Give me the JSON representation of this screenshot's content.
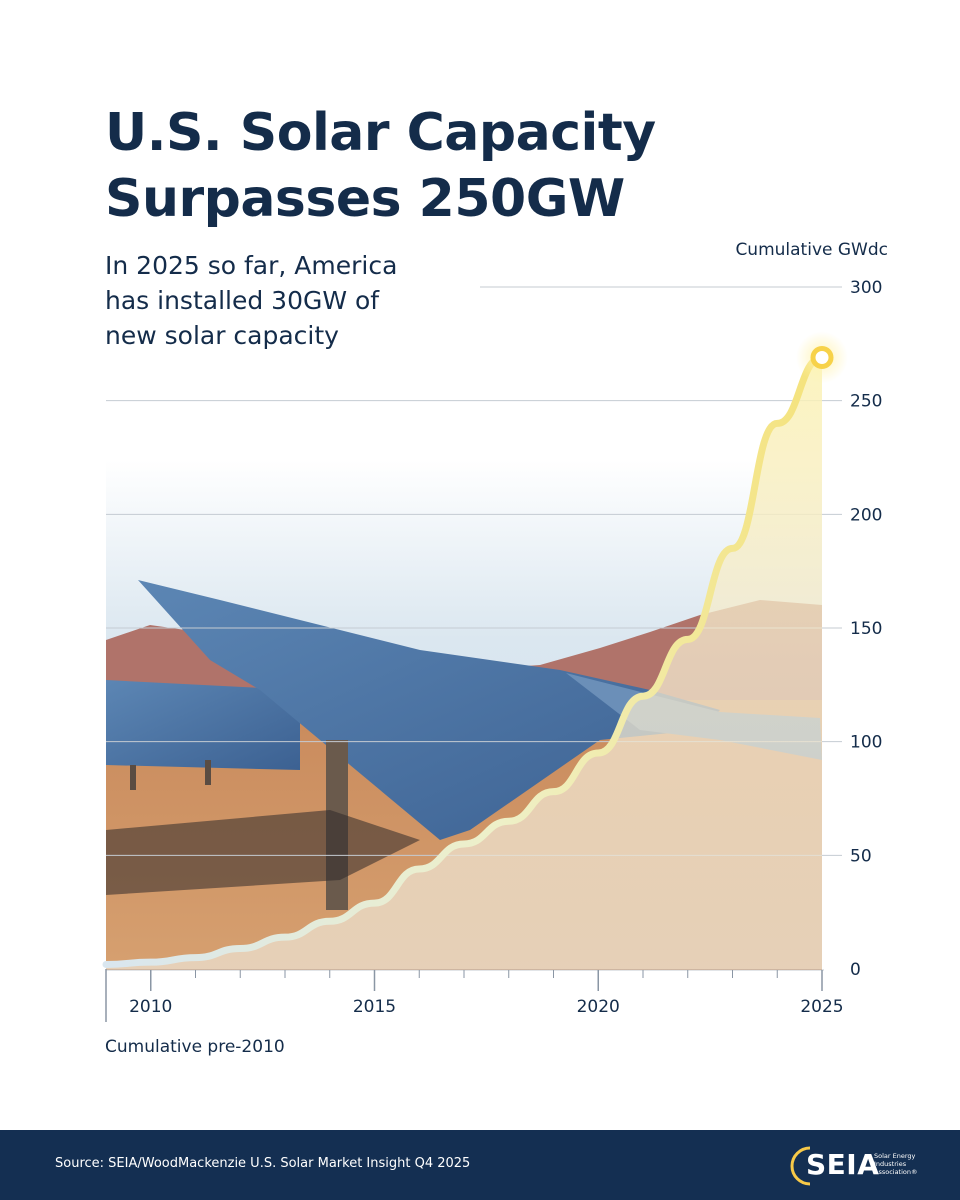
{
  "header": {
    "title_line1": "U.S. Solar Capacity",
    "title_line2": "Surpasses 250GW",
    "subtitle_line1": "In 2025 so far, America",
    "subtitle_line2": "has installed 30GW of",
    "subtitle_line3": "new solar capacity"
  },
  "chart_data": {
    "type": "area",
    "ylabel": "Cumulative GWdc",
    "ylim": [
      0,
      300
    ],
    "yticks": [
      0,
      50,
      100,
      150,
      200,
      250,
      300
    ],
    "xlim": [
      2009,
      2025
    ],
    "xticks": [
      2010,
      2015,
      2020,
      2025
    ],
    "x_origin_label": "Cumulative pre-2010",
    "x": [
      2009,
      2010,
      2011,
      2012,
      2013,
      2014,
      2015,
      2016,
      2017,
      2018,
      2019,
      2020,
      2021,
      2022,
      2023,
      2024,
      2025
    ],
    "values": [
      2,
      3,
      5,
      9,
      14,
      21,
      29,
      44,
      55,
      65,
      78,
      95,
      120,
      145,
      185,
      240,
      269
    ],
    "grid": true,
    "colors": {
      "line": "#f2e27a",
      "highlight": "#f7d24a",
      "grid": "#c5cbd2",
      "axis": "#8a96a4",
      "text": "#142c4a"
    }
  },
  "footer": {
    "source": "Source: SEIA/WoodMackenzie U.S. Solar Market Insight Q4 2025",
    "logo_text": "SEIA",
    "logo_tagline_1": "Solar Energy",
    "logo_tagline_2": "Industries",
    "logo_tagline_3": "Association®",
    "background": "#142f52"
  }
}
